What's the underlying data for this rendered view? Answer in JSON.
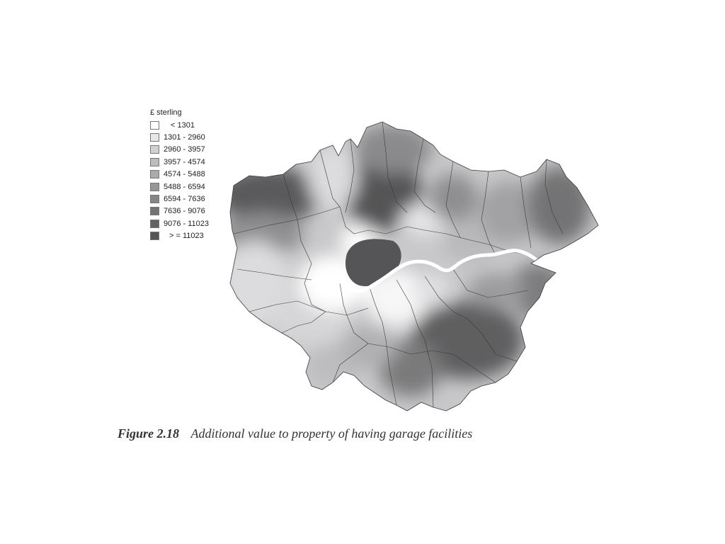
{
  "legend": {
    "title": "£ sterling",
    "classes": [
      {
        "label": "< 1301",
        "color": "#ffffff"
      },
      {
        "label": "1301 - 2960",
        "color": "#e6e6e8"
      },
      {
        "label": "2960 - 3957",
        "color": "#d1d1d3"
      },
      {
        "label": "3957 - 4574",
        "color": "#bdbdbf"
      },
      {
        "label": "4574 - 5488",
        "color": "#aaaaac"
      },
      {
        "label": "5488 - 6594",
        "color": "#979799"
      },
      {
        "label": "6594 - 7636",
        "color": "#858587"
      },
      {
        "label": "7636 - 9076",
        "color": "#737375"
      },
      {
        "label": "9076 - 11023",
        "color": "#636365"
      },
      {
        "label": "> = 11023",
        "color": "#555557"
      }
    ]
  },
  "caption": {
    "figure_number": "Figure 2.18",
    "text": "Additional value to property of having garage facilities"
  },
  "colors": {
    "boundary": "#3a3a3a",
    "river": "#ffffff"
  }
}
